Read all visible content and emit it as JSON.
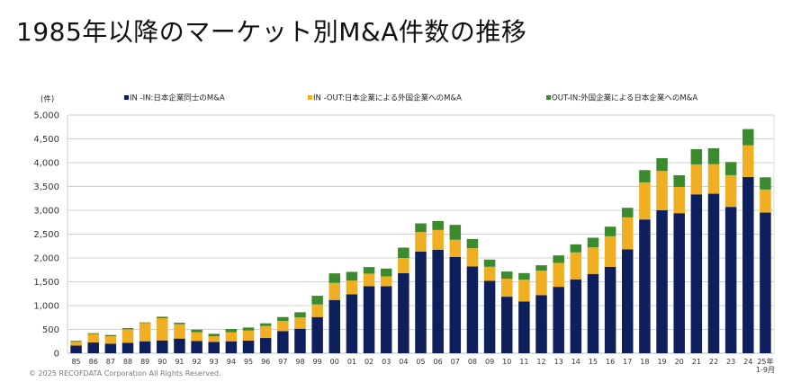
{
  "title": "1985年以降のマーケット別M&A件数の推移",
  "footer": "© 2025 RECOFDATA Corporation All Rights Reserved.",
  "chart_data": {
    "type": "bar",
    "stacked": true,
    "title": "",
    "ylabel": "(件)",
    "ylim": [
      0,
      5000
    ],
    "yticks": [
      "0",
      "500",
      "1,000",
      "1,500",
      "2,000",
      "2,500",
      "3,000",
      "3,500",
      "4,000",
      "4,500",
      "5,000"
    ],
    "grid": true,
    "legend": "top",
    "categories": [
      "85",
      "86",
      "87",
      "88",
      "89",
      "90",
      "91",
      "92",
      "93",
      "94",
      "95",
      "96",
      "97",
      "98",
      "99",
      "00",
      "01",
      "02",
      "03",
      "04",
      "05",
      "06",
      "07",
      "08",
      "09",
      "10",
      "11",
      "12",
      "13",
      "14",
      "15",
      "16",
      "17",
      "18",
      "19",
      "20",
      "21",
      "22",
      "23",
      "24",
      "25年\n1-9月"
    ],
    "series": [
      {
        "name": "IN -IN:日本企業同士のM&A",
        "color": "#0d1f5c",
        "values": [
          160,
          226,
          201,
          220,
          251,
          270,
          308,
          258,
          239,
          251,
          264,
          320,
          465,
          515,
          760,
          1118,
          1237,
          1407,
          1407,
          1683,
          2136,
          2173,
          2023,
          1822,
          1520,
          1187,
          1087,
          1219,
          1394,
          1552,
          1665,
          1815,
          2180,
          2808,
          3003,
          2940,
          3335,
          3348,
          3072,
          3700,
          2952
        ]
      },
      {
        "name": "IN -OUT:日本企業による外国企業へのM&A",
        "color": "#f0ae22",
        "values": [
          80,
          176,
          157,
          282,
          383,
          465,
          301,
          182,
          119,
          189,
          213,
          252,
          213,
          239,
          264,
          358,
          289,
          264,
          207,
          317,
          408,
          415,
          358,
          383,
          295,
          377,
          458,
          515,
          503,
          565,
          559,
          641,
          672,
          779,
          822,
          552,
          629,
          622,
          665,
          666,
          484
        ]
      },
      {
        "name": "OUT-IN:外国企業による日本企業へのM&A",
        "color": "#3b8a2e",
        "values": [
          20,
          19,
          25,
          26,
          13,
          31,
          32,
          56,
          50,
          69,
          63,
          56,
          82,
          107,
          182,
          201,
          183,
          138,
          164,
          217,
          182,
          188,
          314,
          194,
          151,
          151,
          138,
          113,
          157,
          169,
          201,
          201,
          201,
          257,
          270,
          245,
          320,
          333,
          277,
          339,
          257
        ]
      }
    ]
  }
}
